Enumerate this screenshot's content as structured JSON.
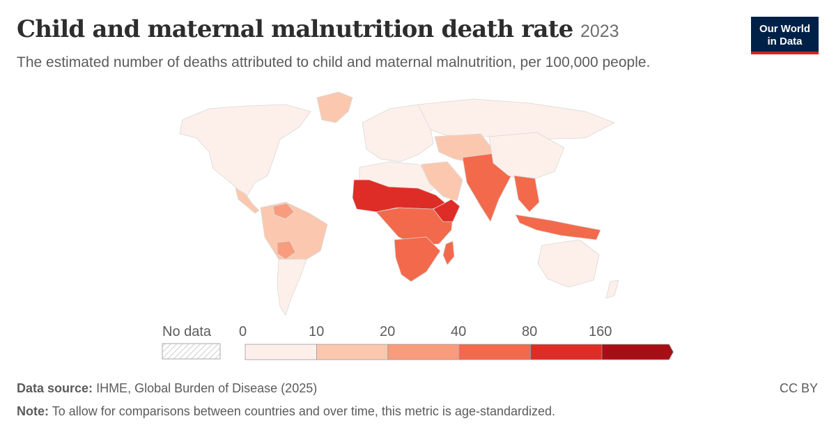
{
  "title": "Child and maternal malnutrition death rate",
  "year": "2023",
  "subtitle": "The estimated number of deaths attributed to child and maternal malnutrition, per 100,000 people.",
  "logo": {
    "line1": "Our World",
    "line2": "in Data"
  },
  "legend": {
    "no_data_label": "No data",
    "thresholds": [
      "0",
      "10",
      "20",
      "40",
      "80",
      "160"
    ],
    "colors": [
      "#fdf0ea",
      "#fbc8af",
      "#f89c7d",
      "#f26a4b",
      "#de2d26",
      "#a50f15"
    ]
  },
  "source": {
    "label": "Data source:",
    "text": "IHME, Global Burden of Disease (2025)"
  },
  "note": {
    "label": "Note:",
    "text": "To allow for comparisons between countries and over time, this metric is age-standardized."
  },
  "license": "CC BY"
}
